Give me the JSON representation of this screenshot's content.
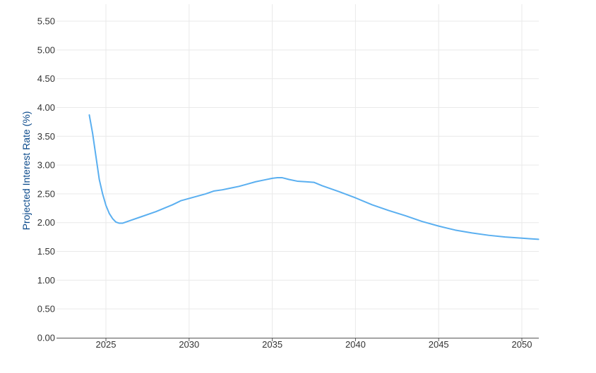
{
  "colors": {
    "series": "#5aaff0",
    "axis_title": "#0b4a8b",
    "grid": "#e9e9e9",
    "tick_text": "#333333"
  },
  "chart_data": {
    "type": "line",
    "title": "",
    "xlabel": "",
    "ylabel": "Projected Interest Rate (%)",
    "xlim": [
      2024,
      2051
    ],
    "ylim": [
      0,
      5.5
    ],
    "x_ticks": [
      2025,
      2030,
      2035,
      2040,
      2045,
      2050
    ],
    "x_tick_labels": [
      "2025",
      "2030",
      "2035",
      "2040",
      "2045",
      "2050"
    ],
    "y_ticks": [
      0,
      0.5,
      1,
      1.5,
      2,
      2.5,
      3,
      3.5,
      4,
      4.5,
      5,
      5.5
    ],
    "y_tick_labels": [
      "0.00",
      "0.50",
      "1.00",
      "1.50",
      "2.00",
      "2.50",
      "3.00",
      "3.50",
      "4.00",
      "4.50",
      "5.00",
      "5.50"
    ],
    "grid": true,
    "legend": "none",
    "series": [
      {
        "x": [
          2024.0,
          2024.2,
          2024.4,
          2024.6,
          2024.8,
          2025.0,
          2025.2,
          2025.4,
          2025.6,
          2025.8,
          2026.0,
          2026.5,
          2027.0,
          2028.0,
          2029.0,
          2029.5,
          2030.0,
          2030.5,
          2031.0,
          2031.5,
          2032.0,
          2032.5,
          2033.0,
          2033.5,
          2034.0,
          2034.5,
          2035.0,
          2035.3,
          2035.6,
          2036.0,
          2036.5,
          2037.0,
          2037.5,
          2038.0,
          2039.0,
          2040.0,
          2041.0,
          2042.0,
          2043.0,
          2044.0,
          2045.0,
          2046.0,
          2047.0,
          2048.0,
          2049.0,
          2050.0,
          2050.5,
          2051.0
        ],
        "values": [
          3.87,
          3.55,
          3.15,
          2.75,
          2.5,
          2.3,
          2.16,
          2.07,
          2.01,
          1.99,
          1.99,
          2.04,
          2.09,
          2.19,
          2.31,
          2.38,
          2.42,
          2.46,
          2.5,
          2.55,
          2.57,
          2.6,
          2.63,
          2.67,
          2.71,
          2.74,
          2.77,
          2.78,
          2.78,
          2.75,
          2.72,
          2.71,
          2.7,
          2.64,
          2.54,
          2.43,
          2.31,
          2.21,
          2.12,
          2.02,
          1.94,
          1.87,
          1.82,
          1.78,
          1.75,
          1.73,
          1.72,
          1.71
        ]
      }
    ]
  }
}
